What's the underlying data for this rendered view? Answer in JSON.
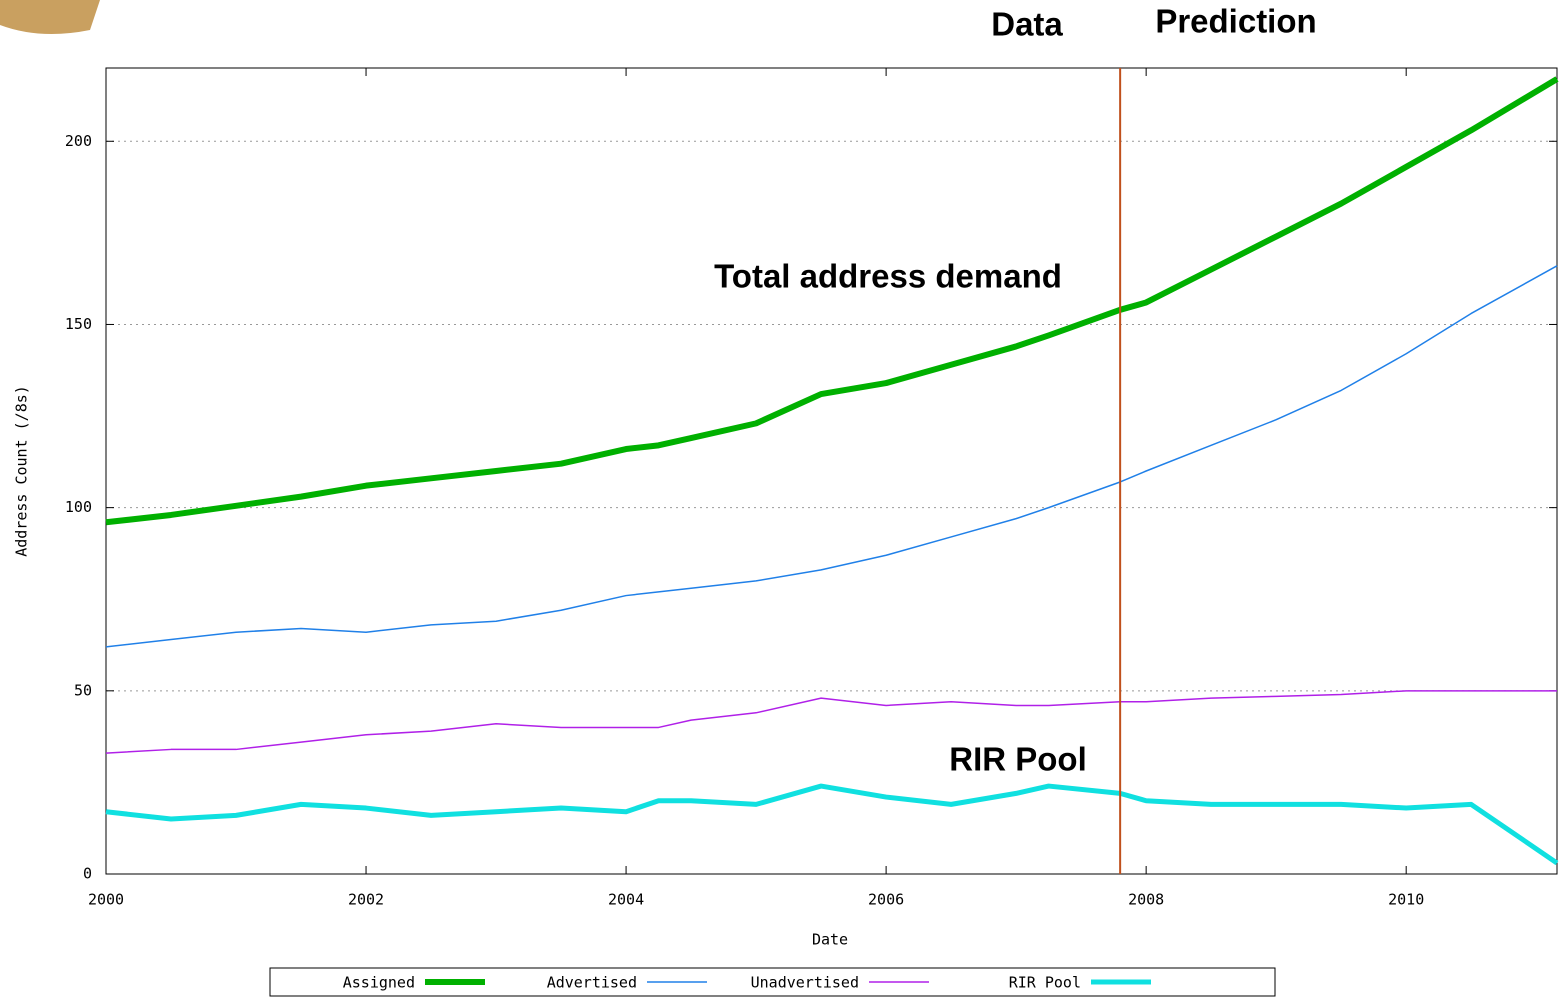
{
  "chart_data": {
    "type": "line",
    "x_label": "Date",
    "y_label": "Address Count (/8s)",
    "annotations": [
      "Data",
      "Prediction",
      "Total address demand",
      "RIR Pool"
    ],
    "divider_x": 2007.8,
    "divider_color": "#c0501c",
    "x": [
      2000,
      2000.5,
      2001,
      2001.5,
      2002,
      2002.5,
      2003,
      2003.5,
      2004,
      2004.25,
      2004.5,
      2005,
      2005.5,
      2006,
      2006.5,
      2007,
      2007.25,
      2007.8,
      2008,
      2008.5,
      2009,
      2009.5,
      2010,
      2010.5,
      2011.16
    ],
    "series": [
      {
        "name": "Assigned",
        "color": "#00b000",
        "width": 6,
        "values": [
          96,
          98,
          100.5,
          103,
          106,
          108,
          110,
          112,
          116,
          117,
          119,
          123,
          131,
          134,
          139,
          144,
          147,
          154,
          156,
          165,
          174,
          183,
          193,
          203,
          217
        ]
      },
      {
        "name": "Advertised",
        "color": "#2080e8",
        "width": 1.5,
        "values": [
          62,
          64,
          66,
          67,
          66,
          68,
          69,
          72,
          76,
          77,
          78,
          80,
          83,
          87,
          92,
          97,
          100,
          107,
          110,
          117,
          124,
          132,
          142,
          153,
          166
        ]
      },
      {
        "name": "Unadvertised",
        "color": "#b020e8",
        "width": 1.5,
        "values": [
          33,
          34,
          34,
          36,
          38,
          39,
          41,
          40,
          40,
          40,
          42,
          44,
          48,
          46,
          47,
          46,
          46,
          47,
          47,
          48,
          48.5,
          49,
          50,
          50,
          50
        ]
      },
      {
        "name": "RIR Pool",
        "color": "#10e0e0",
        "width": 5,
        "values": [
          17,
          15,
          16,
          19,
          18,
          16,
          17,
          18,
          17,
          20,
          20,
          19,
          24,
          21,
          19,
          22,
          24,
          22,
          20,
          19,
          19,
          19,
          18,
          19,
          3
        ]
      }
    ],
    "xlim": [
      2000,
      2011.16
    ],
    "xticks": [
      2000,
      2002,
      2004,
      2006,
      2008,
      2010
    ],
    "ylim": [
      0,
      220
    ],
    "yticks": [
      0,
      50,
      100,
      150,
      200
    ],
    "grid": true,
    "legend": "bottom"
  }
}
